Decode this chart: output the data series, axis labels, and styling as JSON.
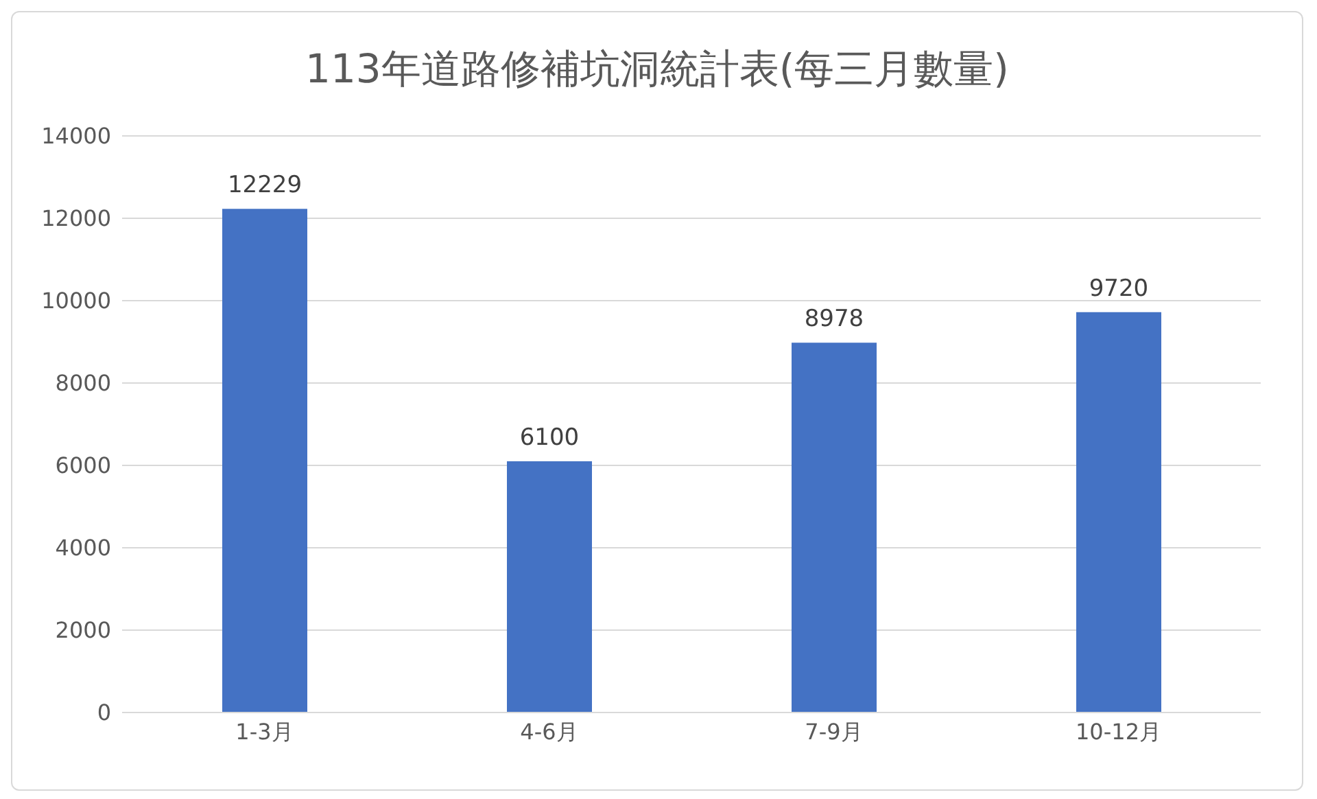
{
  "chart_data": {
    "type": "bar",
    "title": "113年道路修補坑洞統計表(每三月數量)",
    "categories": [
      "1-3月",
      "4-6月",
      "7-9月",
      "10-12月"
    ],
    "values": [
      12229,
      6100,
      8978,
      9720
    ],
    "color": "#4472c4",
    "ylim": [
      0,
      14000
    ],
    "yticks": [
      0,
      2000,
      4000,
      6000,
      8000,
      10000,
      12000,
      14000
    ],
    "grid": "y",
    "data_labels": true
  }
}
